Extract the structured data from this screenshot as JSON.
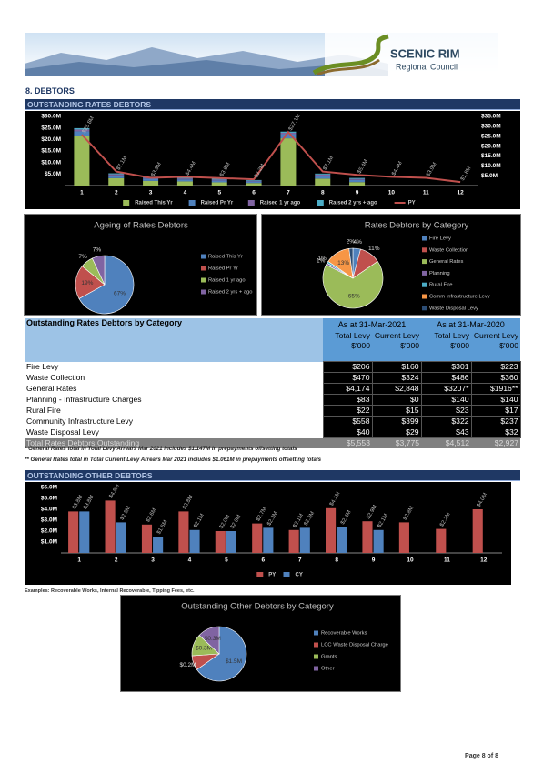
{
  "header": {
    "logo_name": "SCENIC RIM",
    "logo_subtitle": "Regional Council"
  },
  "sections": [
    "8. DEBTORS",
    "OUTSTANDING RATES DEBTORS",
    "OUTSTANDING OTHER DEBTORS"
  ],
  "chart_data": [
    {
      "type": "bar",
      "stacked": true,
      "legend": "bottom",
      "grid": false,
      "categories": [
        "1",
        "2",
        "3",
        "4",
        "5",
        "6",
        "7",
        "8",
        "9",
        "10",
        "11",
        "12"
      ],
      "ylim": [
        0,
        30
      ],
      "yticks": [
        {
          "value": 5,
          "label": "$5.0M"
        },
        {
          "value": 10,
          "label": "$10.0M"
        },
        {
          "value": 15,
          "label": "$15.0M"
        },
        {
          "value": 20,
          "label": "$20.0M"
        },
        {
          "value": 25,
          "label": "$25.0M"
        },
        {
          "value": 30,
          "label": "$30.0M"
        }
      ],
      "y2lim": [
        0,
        35
      ],
      "y2ticks": [
        {
          "value": 5,
          "label": "$5.0M"
        },
        {
          "value": 10,
          "label": "$10.0M"
        },
        {
          "value": 15,
          "label": "$15.0M"
        },
        {
          "value": 20,
          "label": "$20.0M"
        },
        {
          "value": 25,
          "label": "$25.0M"
        },
        {
          "value": 30,
          "label": "$30.0M"
        },
        {
          "value": 35,
          "label": "$35.0M"
        }
      ],
      "series": [
        {
          "name": "Raised This Yr",
          "color": "#9bbb59",
          "values": [
            21.5,
            3.2,
            2.0,
            1.8,
            1.4,
            1.1,
            20.5,
            3.0,
            1.5,
            null,
            null,
            null
          ]
        },
        {
          "name": "Raised Pr Yr",
          "color": "#4f81bd",
          "values": [
            2.0,
            1.2,
            1.0,
            0.9,
            0.8,
            0.7,
            1.8,
            1.3,
            1.0,
            null,
            null,
            null
          ]
        },
        {
          "name": "Raised 1 yr ago",
          "color": "#8064a2",
          "values": [
            0.8,
            0.5,
            0.4,
            0.4,
            0.4,
            0.3,
            0.6,
            0.5,
            0.4,
            null,
            null,
            null
          ]
        },
        {
          "name": "Raised 2 yrs + ago",
          "color": "#4bacc6",
          "values": [
            0.6,
            0.4,
            0.4,
            0.4,
            0.4,
            0.3,
            0.5,
            0.4,
            0.4,
            null,
            null,
            null
          ]
        },
        {
          "name": "PY",
          "color": "#c0504d",
          "type": "line",
          "axis": "y2",
          "values": [
            25.8,
            7.1,
            3.9,
            4.4,
            3.8,
            3.2,
            27.1,
            7.1,
            5.4,
            4.4,
            3.9,
            1.8
          ],
          "value_labels": [
            "$25.8M",
            "$7.1M",
            "$3.9M",
            "$4.4M",
            "$3.8M",
            "$3.2M",
            "$27.1M",
            "$7.1M",
            "$5.4M",
            "$4.4M",
            "$3.9M",
            "$1.8M"
          ]
        }
      ]
    },
    {
      "type": "pie",
      "title": "Ageing of Rates Debtors",
      "legend": "right",
      "categories": [
        "Raised This Yr",
        "Raised Pr Yr",
        "Raised 1 yr ago",
        "Raised 2 yrs + ago"
      ],
      "values": [
        67,
        19,
        7,
        7
      ],
      "value_labels": [
        "67%",
        "19%",
        "7%",
        "7%"
      ],
      "colors": [
        "#4f81bd",
        "#c0504d",
        "#9bbb59",
        "#8064a2"
      ]
    },
    {
      "type": "pie",
      "title": "Rates Debtors by Category",
      "legend": "right",
      "categories": [
        "Fire Levy",
        "Waste Collection",
        "General Rates",
        "Planning",
        "Rural Fire",
        "Comm Infrastructure Levy",
        "Waste Disposal Levy"
      ],
      "values": [
        4,
        11,
        65,
        1,
        1,
        13,
        2
      ],
      "value_labels": [
        "4%",
        "11%",
        "65%",
        "1%",
        "1%",
        "13%",
        "2%"
      ],
      "colors": [
        "#4f81bd",
        "#c0504d",
        "#9bbb59",
        "#8064a2",
        "#4bacc6",
        "#f79646",
        "#2c4d75"
      ]
    },
    {
      "type": "bar",
      "stacked": false,
      "legend": "bottom",
      "grid": false,
      "categories": [
        "1",
        "2",
        "3",
        "4",
        "5",
        "6",
        "7",
        "8",
        "9",
        "10",
        "11",
        "12"
      ],
      "ylim": [
        0,
        6
      ],
      "yticks": [
        {
          "value": 1,
          "label": "$1.0M"
        },
        {
          "value": 2,
          "label": "$2.0M"
        },
        {
          "value": 3,
          "label": "$3.0M"
        },
        {
          "value": 4,
          "label": "$4.0M"
        },
        {
          "value": 5,
          "label": "$5.0M"
        },
        {
          "value": 6,
          "label": "$6.0M"
        }
      ],
      "series": [
        {
          "name": "PY",
          "color": "#c0504d",
          "values": [
            3.8,
            4.8,
            2.6,
            3.8,
            2.0,
            2.7,
            2.1,
            4.1,
            2.9,
            2.8,
            2.2,
            4.0
          ],
          "value_labels": [
            "$3.8M",
            "$4.8M",
            "$2.6M",
            "$3.8M",
            "$2.0M",
            "$2.7M",
            "$2.1M",
            "$4.1M",
            "$2.9M",
            "$2.8M",
            "$2.2M",
            "$4.0M"
          ]
        },
        {
          "name": "CY",
          "color": "#4f81bd",
          "values": [
            3.8,
            2.8,
            1.5,
            2.1,
            2.0,
            2.3,
            2.3,
            2.4,
            2.1,
            null,
            null,
            null
          ],
          "value_labels": [
            "$3.8M",
            "$2.8M",
            "$1.5M",
            "$2.1M",
            "$2.0M",
            "$2.3M",
            "$2.3M",
            "$2.4M",
            "$2.1M",
            null,
            null,
            null
          ]
        }
      ]
    },
    {
      "type": "pie",
      "title": "Outstanding Other Debtors by Category",
      "legend": "right",
      "categories": [
        "Recoverable Works",
        "LCC Waste Disposal Charge",
        "Grants",
        "Other"
      ],
      "values": [
        1.5,
        0.2,
        0.3,
        0.3
      ],
      "value_labels": [
        "$1.5M",
        "$0.2M",
        "$0.3M",
        "$0.3M"
      ],
      "colors": [
        "#4f81bd",
        "#c0504d",
        "#9bbb59",
        "#8064a2"
      ]
    }
  ],
  "table": {
    "title": "Outstanding Rates Debtors by Category",
    "column_groups": [
      "As at 31-Mar-2021",
      "As at 31-Mar-2020"
    ],
    "columns": [
      "Total Levy $'000",
      "Current Levy $'000",
      "Total Levy $'000",
      "Current Levy $'000"
    ],
    "rows": [
      [
        "Fire Levy",
        "$206",
        "$160",
        "$301",
        "$223"
      ],
      [
        "Waste Collection",
        "$470",
        "$324",
        "$486",
        "$360"
      ],
      [
        "General Rates",
        "$4,174",
        "$2,848",
        "$3207*",
        "$1916**"
      ],
      [
        "Planning - Infrastructure Charges",
        "$83",
        "$0",
        "$140",
        "$140"
      ],
      [
        "Rural Fire",
        "$22",
        "$15",
        "$23",
        "$17"
      ],
      [
        "Community Infrastructure Levy",
        "$558",
        "$399",
        "$322",
        "$237"
      ],
      [
        "Waste Disposal Levy",
        "$40",
        "$29",
        "$43",
        "$32"
      ]
    ],
    "total": [
      "Total Rates Debtors Outstanding",
      "$5,553",
      "$3,775",
      "$4,512",
      "$2,927"
    ]
  },
  "footnotes": [
    "* General Rates total in Total Levy Arrears Mar 2021 includes $1.147M in prepayments offsetting totals",
    "** General Rates total in Total Current Levy Arrears Mar 2021 includes $1.061M in prepayments offsetting totals"
  ],
  "examples_note": "Examples: Recoverable Works, Internal Recoverable, Tipping Fees, etc.",
  "footer": "Page 8 of 8"
}
